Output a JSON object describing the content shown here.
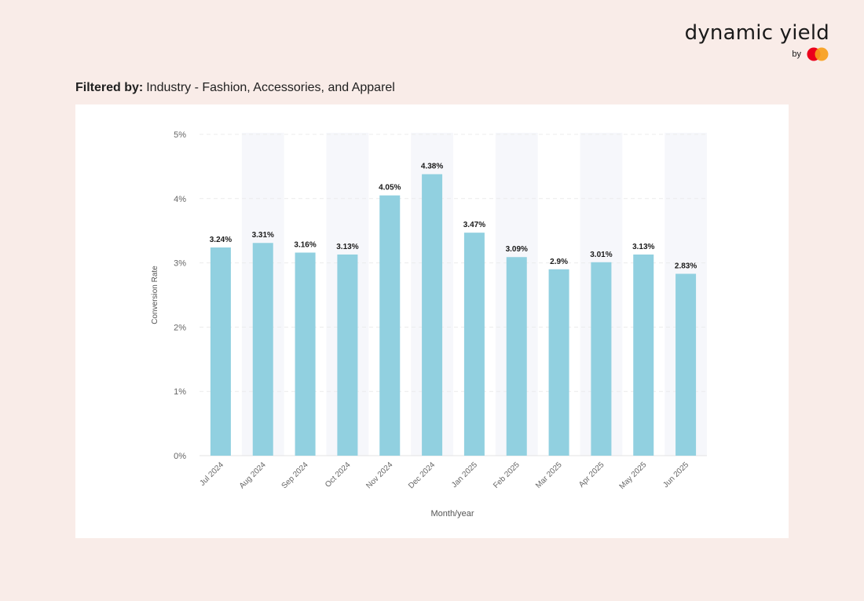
{
  "brand": {
    "name": "dynamic yield",
    "by": "by",
    "logo_icon": "mastercard-icon"
  },
  "filter": {
    "label": "Filtered by:",
    "value": "Industry - Fashion, Accessories, and Apparel"
  },
  "colors": {
    "bar": "#91d0e0",
    "band": "#f6f7fb",
    "page_bg": "#f9ece8",
    "mc_red": "#eb001b",
    "mc_orange": "#f79e1b"
  },
  "chart_data": {
    "type": "bar",
    "categories": [
      "Jul 2024",
      "Aug 2024",
      "Sep 2024",
      "Oct 2024",
      "Nov 2024",
      "Dec 2024",
      "Jan 2025",
      "Feb 2025",
      "Mar 2025",
      "Apr 2025",
      "May 2025",
      "Jun 2025"
    ],
    "values": [
      3.24,
      3.31,
      3.16,
      3.13,
      4.05,
      4.38,
      3.47,
      3.09,
      2.9,
      3.01,
      3.13,
      2.83
    ],
    "data_labels": [
      "3.24%",
      "3.31%",
      "3.16%",
      "3.13%",
      "4.05%",
      "4.38%",
      "3.47%",
      "3.09%",
      "2.9%",
      "3.01%",
      "3.13%",
      "2.83%"
    ],
    "xlabel": "Month/year",
    "ylabel": "Conversion Rate",
    "ylim": [
      0,
      5
    ],
    "yticks": [
      0,
      1,
      2,
      3,
      4,
      5
    ],
    "ytick_labels": [
      "0%",
      "1%",
      "2%",
      "3%",
      "4%",
      "5%"
    ],
    "grid": true,
    "alternating_bands": true
  }
}
